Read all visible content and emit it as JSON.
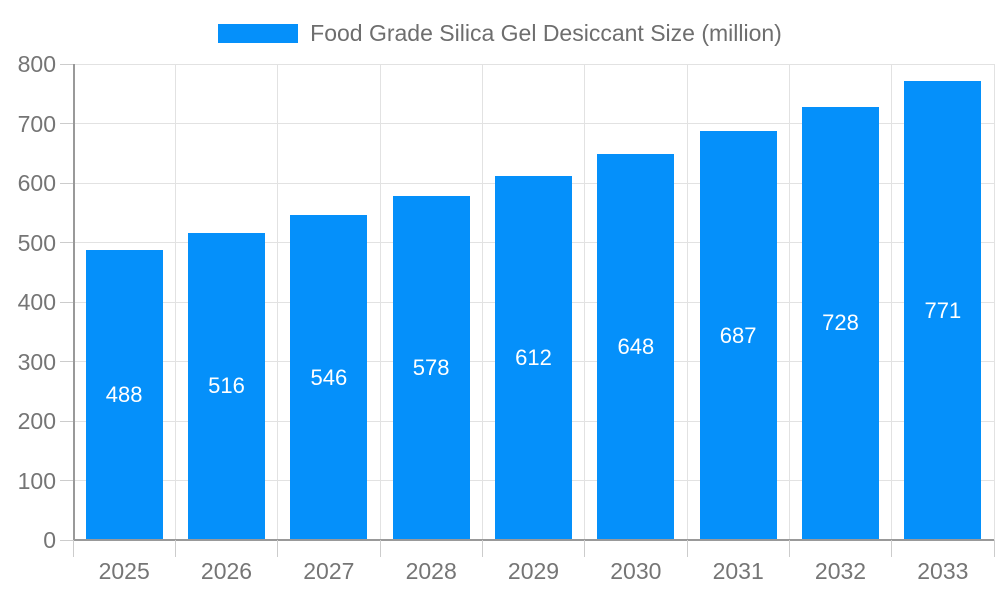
{
  "chart_data": {
    "type": "bar",
    "title": "Food Grade Silica Gel Desiccant Size (million)",
    "categories": [
      "2025",
      "2026",
      "2027",
      "2028",
      "2029",
      "2030",
      "2031",
      "2032",
      "2033"
    ],
    "values": [
      488,
      516,
      546,
      578,
      612,
      648,
      687,
      728,
      771
    ],
    "xlabel": "",
    "ylabel": "",
    "ylim": [
      0,
      800
    ],
    "ytick_step": 100,
    "grid": true,
    "legend_position": "top",
    "colors": {
      "bar": "#0590FA",
      "value_label": "#ffffff",
      "axis_text": "#757575",
      "title_text": "#6e6e6e",
      "axis_line": "#999999",
      "grid_line": "#e2e2e2",
      "tick_line": "#cccccc",
      "background": "#ffffff"
    }
  }
}
